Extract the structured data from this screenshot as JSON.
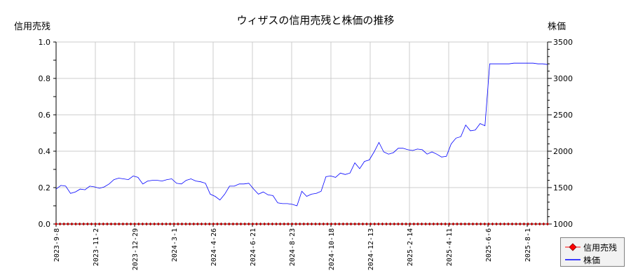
{
  "chart_data": {
    "type": "line",
    "title": "ウィザスの信用売残と株価の推移",
    "ylabel_left": "信用売残",
    "ylabel_right": "株価",
    "left_axis": {
      "range": [
        0.0,
        1.0
      ],
      "ticks": [
        "0.0",
        "0.2",
        "0.4",
        "0.6",
        "0.8",
        "1.0"
      ]
    },
    "right_axis": {
      "range": [
        1000,
        3500
      ],
      "ticks": [
        "1000",
        "1500",
        "2000",
        "2500",
        "3000",
        "3500"
      ]
    },
    "x_tick_labels": [
      "2023-9-8",
      "2023-11-2",
      "2023-12-29",
      "2024-3-1",
      "2024-4-26",
      "2024-6-21",
      "2024-8-23",
      "2024-10-18",
      "2024-12-13",
      "2025-2-14",
      "2025-4-11",
      "2025-6-6",
      "2025-8-1"
    ],
    "grid": true,
    "legend": {
      "position": "bottom-right",
      "entries": [
        "信用売残",
        "株価"
      ]
    },
    "series": [
      {
        "name": "信用売残",
        "axis": "left",
        "color": "#ff0000",
        "marker": "diamond",
        "note": "all points at 0.0",
        "constant_value": 0.0
      },
      {
        "name": "株価",
        "axis": "right",
        "color": "#0000ff",
        "values": [
          1480,
          1530,
          1520,
          1420,
          1440,
          1480,
          1470,
          1520,
          1510,
          1490,
          1510,
          1550,
          1610,
          1630,
          1620,
          1610,
          1660,
          1640,
          1550,
          1590,
          1600,
          1600,
          1590,
          1610,
          1620,
          1560,
          1550,
          1600,
          1620,
          1590,
          1580,
          1560,
          1410,
          1380,
          1330,
          1410,
          1520,
          1520,
          1550,
          1550,
          1560,
          1480,
          1410,
          1440,
          1400,
          1390,
          1290,
          1280,
          1280,
          1270,
          1250,
          1450,
          1380,
          1410,
          1420,
          1450,
          1650,
          1660,
          1640,
          1700,
          1680,
          1700,
          1840,
          1760,
          1860,
          1880,
          1990,
          2120,
          1990,
          1960,
          1980,
          2040,
          2040,
          2020,
          2010,
          2030,
          2020,
          1960,
          1990,
          1960,
          1920,
          1930,
          2100,
          2180,
          2200,
          2360,
          2280,
          2290,
          2380,
          2350,
          3200,
          3200,
          3200,
          3200,
          3200,
          3210,
          3210,
          3210,
          3210,
          3210,
          3200,
          3200,
          3190
        ],
        "approx": true
      }
    ]
  },
  "legend_items": {
    "margin": "信用売残",
    "price": "株価"
  }
}
